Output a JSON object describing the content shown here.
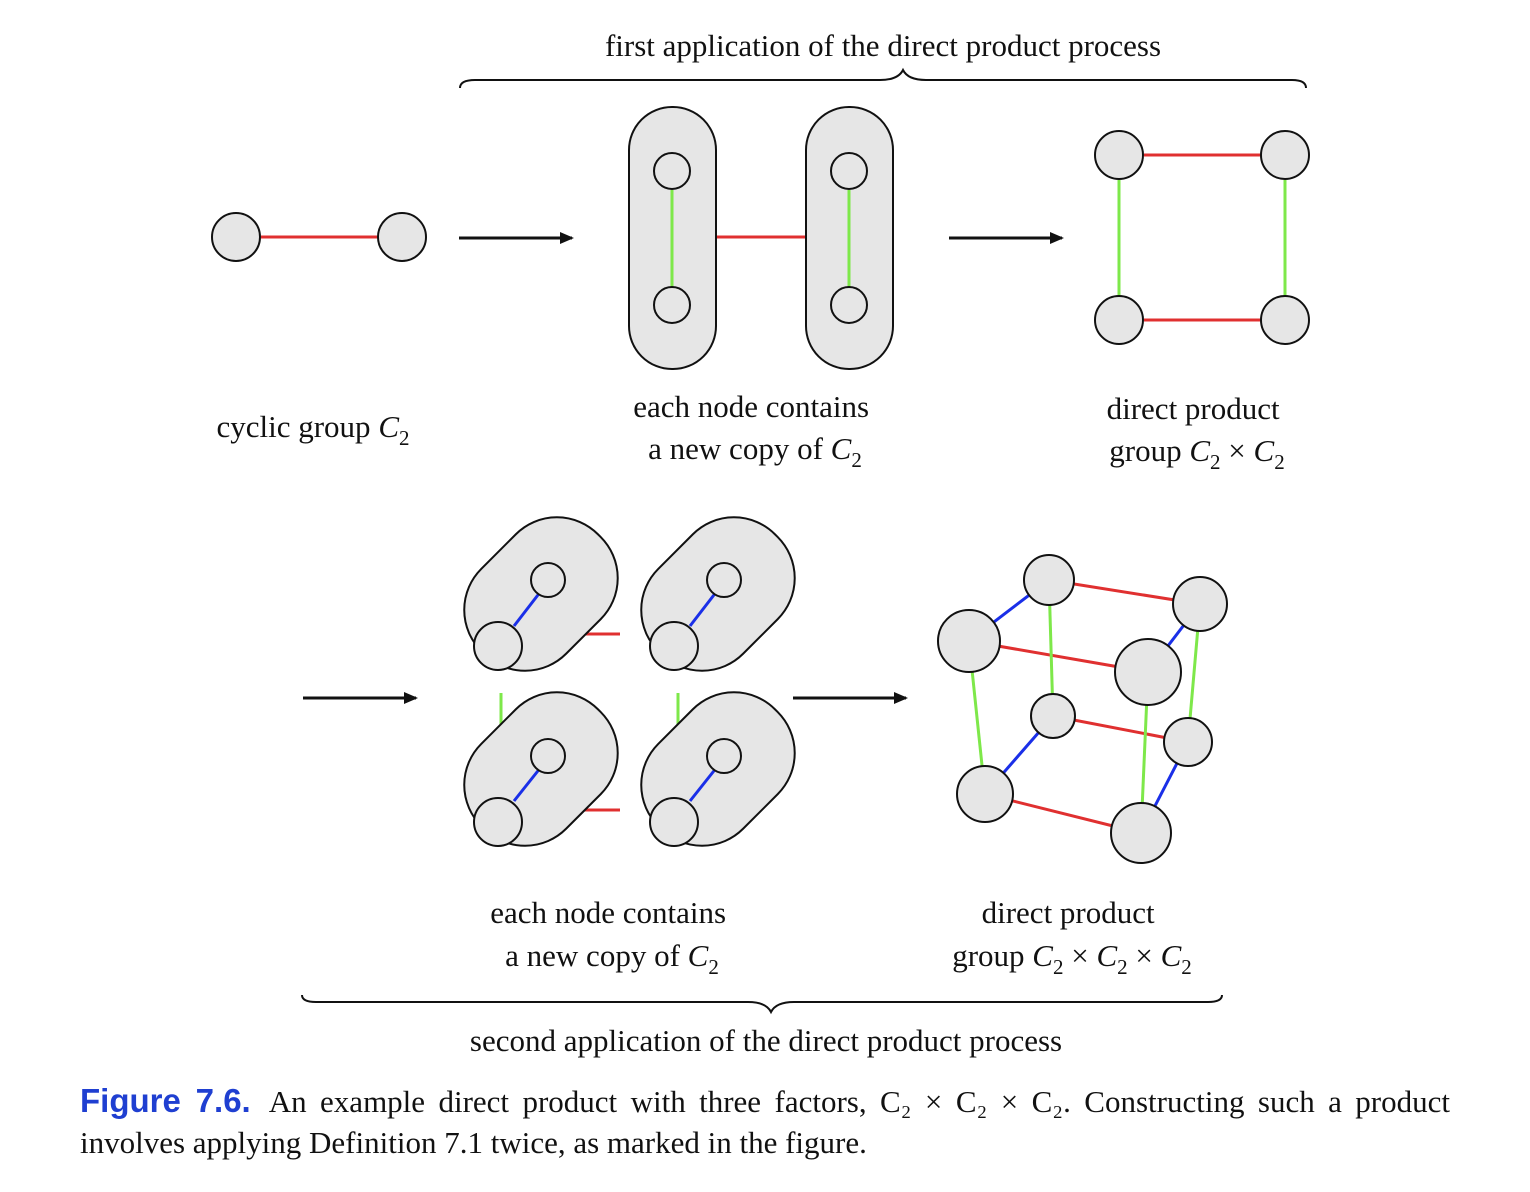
{
  "top_brace_label": "first application of the direct product process",
  "bottom_brace_label": "second application of the direct product process",
  "labels": {
    "cyclic": {
      "text": "cyclic group ",
      "sym": "C",
      "sub": "2"
    },
    "each_node_1": {
      "line1": "each node contains",
      "line2": "a new copy of ",
      "sym": "C",
      "sub": "2"
    },
    "direct_1": {
      "line1": "direct product",
      "line2_prefix": "group ",
      "sym1": "C",
      "sub1": "2",
      "times": " × ",
      "sym2": "C",
      "sub2": "2"
    },
    "each_node_2": {
      "line1": "each node contains",
      "line2": "a new copy of ",
      "sym": "C",
      "sub": "2"
    },
    "direct_2": {
      "line1": "direct product",
      "line2_prefix": "group ",
      "sym1": "C",
      "sub1": "2",
      "times1": " × ",
      "sym2": "C",
      "sub2": "2",
      "times2": " × ",
      "sym3": "C",
      "sub3": "2"
    }
  },
  "caption": {
    "label": "Figure 7.6.",
    "text": "An example direct product with three factors, C₂ × C₂ × C₂. Constructing such a product involves applying Definition 7.1 twice, as marked in the figure."
  },
  "colors": {
    "red": "#e03030",
    "green": "#7ee84a",
    "blue": "#1a2fe8",
    "node_fill": "#e6e6e6",
    "caption_label": "#1f3fd1"
  }
}
